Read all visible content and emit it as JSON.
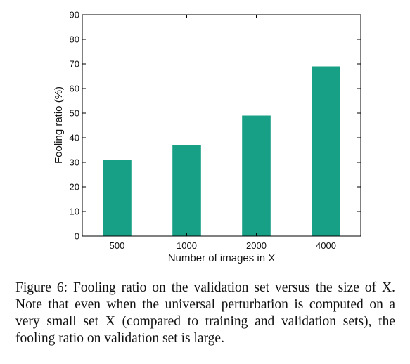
{
  "chart_data": {
    "type": "bar",
    "categories": [
      "500",
      "1000",
      "2000",
      "4000"
    ],
    "values": [
      31,
      37,
      49,
      69
    ],
    "xlabel": "Number of images in X",
    "ylabel": "Fooling ratio (%)",
    "ylim": [
      0,
      90
    ],
    "yticks": [
      0,
      10,
      20,
      30,
      40,
      50,
      60,
      70,
      80,
      90
    ],
    "grid": false,
    "bar_color": "#17a085"
  },
  "caption": "Figure 6:  Fooling ratio on the validation set versus the size of X.  Note that even when the universal perturbation is computed on a very small set X (compared to training and validation sets), the fooling ratio on validation set is large."
}
